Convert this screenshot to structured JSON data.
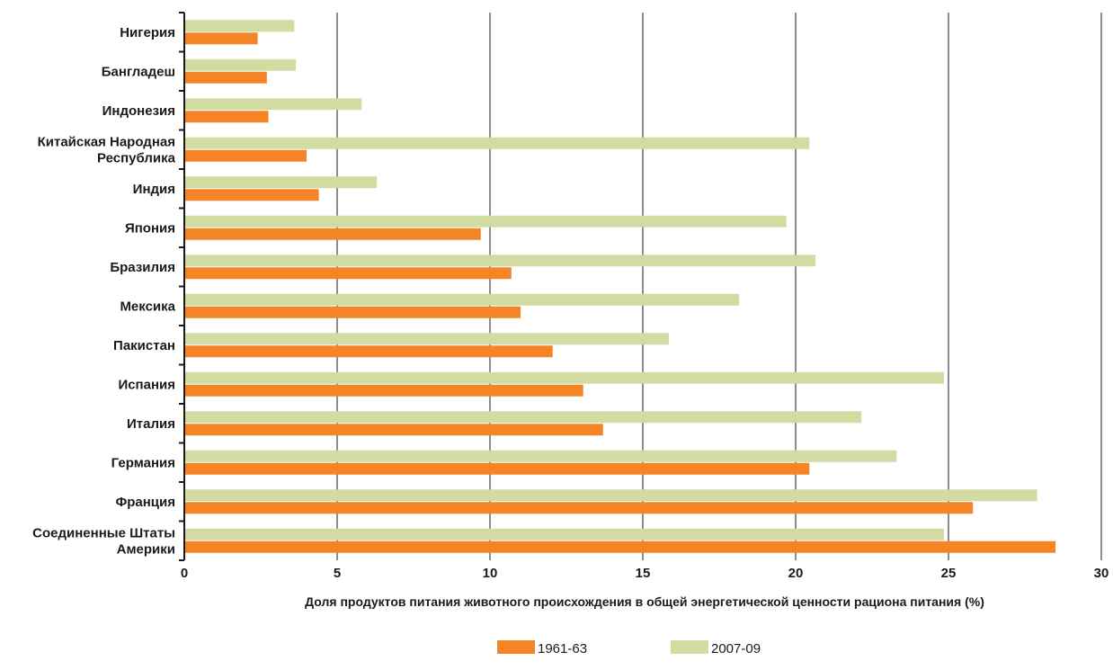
{
  "chart_data": {
    "type": "bar",
    "orientation": "horizontal",
    "categories": [
      [
        "Нигерия"
      ],
      [
        "Бангладеш"
      ],
      [
        "Индонезия"
      ],
      [
        "Китайская Народная",
        "Республика"
      ],
      [
        "Индия"
      ],
      [
        "Япония"
      ],
      [
        "Бразилия"
      ],
      [
        "Мексика"
      ],
      [
        "Пакистан"
      ],
      [
        "Испания"
      ],
      [
        "Италия"
      ],
      [
        "Германия"
      ],
      [
        "Франция"
      ],
      [
        "Соединенные Штаты",
        "Америки"
      ]
    ],
    "series": [
      {
        "name": "1961-63",
        "color": "#f58426",
        "values": [
          2.4,
          2.7,
          2.75,
          4.0,
          4.4,
          9.7,
          10.7,
          11.0,
          12.05,
          13.05,
          13.7,
          20.45,
          25.8,
          28.5
        ]
      },
      {
        "name": "2007-09",
        "color": "#d2dca2",
        "values": [
          3.6,
          3.65,
          5.8,
          20.45,
          6.3,
          19.7,
          20.65,
          18.15,
          15.85,
          24.85,
          22.15,
          23.3,
          27.9,
          24.85
        ]
      }
    ],
    "xlabel": "Доля продуктов питания животного происхождения в общей энергетической ценности рациона питания (%)",
    "xlim": [
      0,
      30
    ],
    "xticks": [
      0,
      5,
      10,
      15,
      20,
      25,
      30
    ],
    "grid": "vertical",
    "legend_position": "bottom-center"
  }
}
